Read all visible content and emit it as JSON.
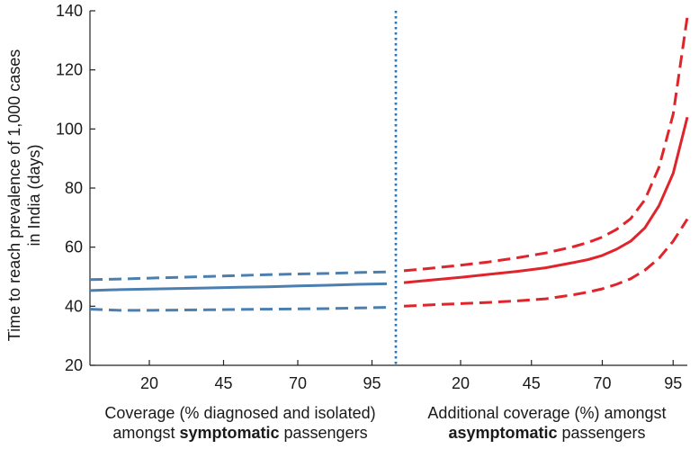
{
  "chart_data": {
    "type": "line",
    "title": "",
    "ylabel_lines": [
      "Time to reach prevalence of 1,000 cases",
      "in India (days)"
    ],
    "ylim": [
      20,
      140
    ],
    "yticks": [
      20,
      40,
      60,
      80,
      100,
      120,
      140
    ],
    "grid": false,
    "panels": [
      {
        "name": "symptomatic",
        "xlim": [
          0,
          100
        ],
        "xticks": [
          20,
          45,
          70,
          95
        ],
        "xlabel_line1": "Coverage (% diagnosed and isolated)",
        "xlabel_line2_prefix": "amongst ",
        "xlabel_line2_bold": "symptomatic",
        "xlabel_line2_suffix": " passengers",
        "color": "#4a7fb0",
        "series": [
          {
            "name": "central",
            "style": "solid",
            "x": [
              0,
              10,
              20,
              30,
              40,
              50,
              60,
              70,
              80,
              90,
              100
            ],
            "values": [
              45.3,
              45.6,
              45.8,
              46.0,
              46.2,
              46.4,
              46.6,
              46.9,
              47.1,
              47.4,
              47.6
            ]
          },
          {
            "name": "upper",
            "style": "dashed",
            "x": [
              0,
              10,
              20,
              30,
              40,
              50,
              60,
              70,
              80,
              90,
              100
            ],
            "values": [
              49.0,
              49.2,
              49.5,
              49.8,
              50.1,
              50.4,
              50.7,
              50.9,
              51.1,
              51.4,
              51.6
            ]
          },
          {
            "name": "lower",
            "style": "dashed",
            "x": [
              0,
              10,
              20,
              30,
              40,
              50,
              60,
              70,
              80,
              90,
              100
            ],
            "values": [
              39.0,
              38.6,
              38.6,
              38.7,
              38.8,
              38.9,
              39.0,
              39.1,
              39.2,
              39.4,
              39.6
            ]
          }
        ]
      },
      {
        "name": "asymptomatic",
        "xlim": [
          0,
          100
        ],
        "xticks": [
          20,
          45,
          70,
          95
        ],
        "xlabel_line1": "Additional coverage (%) amongst",
        "xlabel_line2_prefix": "",
        "xlabel_line2_bold": "asymptomatic",
        "xlabel_line2_suffix": " passengers",
        "color": "#e0242b",
        "series": [
          {
            "name": "central",
            "style": "solid",
            "x": [
              0,
              10,
              20,
              30,
              40,
              50,
              60,
              65,
              70,
              75,
              80,
              85,
              90,
              95,
              100
            ],
            "values": [
              48.0,
              48.9,
              49.8,
              50.8,
              51.8,
              53.0,
              54.8,
              55.8,
              57.2,
              59.3,
              62.0,
              66.5,
              74.0,
              85.0,
              104.0
            ]
          },
          {
            "name": "upper",
            "style": "dashed",
            "x": [
              0,
              10,
              20,
              30,
              40,
              50,
              60,
              65,
              70,
              75,
              80,
              85,
              90,
              95,
              100
            ],
            "values": [
              52.0,
              52.9,
              53.9,
              55.0,
              56.4,
              58.0,
              60.2,
              61.6,
              63.4,
              66.0,
              69.6,
              76.0,
              87.0,
              105.0,
              138.0
            ]
          },
          {
            "name": "lower",
            "style": "dashed",
            "x": [
              0,
              10,
              20,
              30,
              40,
              50,
              60,
              65,
              70,
              75,
              80,
              85,
              90,
              95,
              100
            ],
            "values": [
              40.0,
              40.5,
              40.9,
              41.3,
              41.8,
              42.5,
              43.9,
              44.8,
              45.9,
              47.4,
              49.3,
              52.2,
              56.2,
              62.0,
              69.5
            ]
          }
        ]
      }
    ],
    "divider": {
      "style": "dotted",
      "color": "#2b73b8"
    }
  }
}
